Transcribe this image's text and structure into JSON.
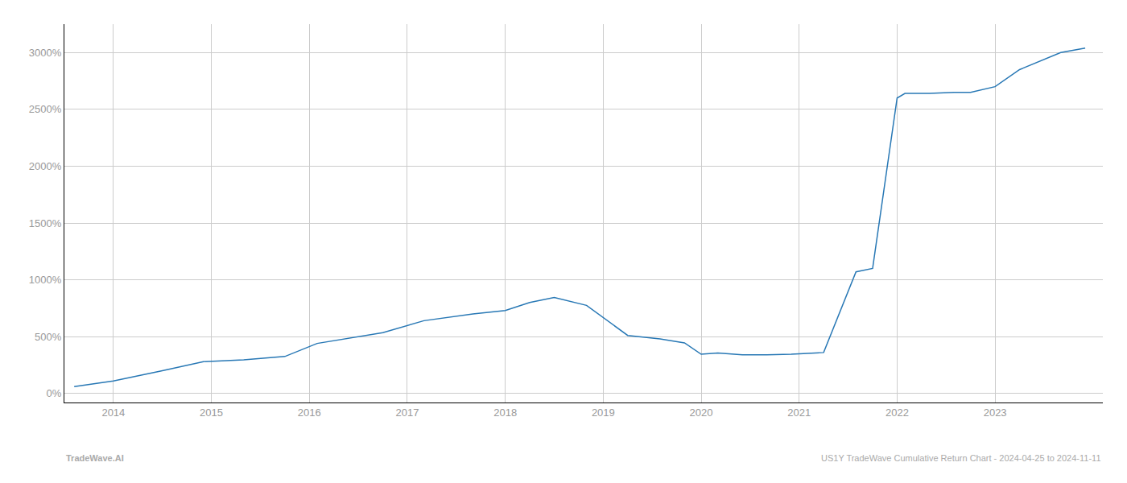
{
  "chart_data": {
    "type": "line",
    "x": [
      2013.6,
      2014.0,
      2014.5,
      2014.92,
      2015.33,
      2015.75,
      2016.08,
      2016.42,
      2016.75,
      2017.17,
      2017.67,
      2018.0,
      2018.25,
      2018.5,
      2018.83,
      2019.25,
      2019.58,
      2019.83,
      2020.0,
      2020.17,
      2020.42,
      2020.67,
      2020.92,
      2021.25,
      2021.58,
      2021.75,
      2022.0,
      2022.08,
      2022.33,
      2022.58,
      2022.75,
      2023.0,
      2023.25,
      2023.67,
      2023.92
    ],
    "values": [
      60,
      110,
      200,
      280,
      295,
      325,
      440,
      490,
      535,
      640,
      700,
      730,
      800,
      845,
      775,
      510,
      480,
      445,
      345,
      355,
      340,
      340,
      345,
      360,
      1070,
      1100,
      2600,
      2640,
      2640,
      2650,
      2650,
      2700,
      2850,
      3000,
      3040
    ],
    "color": "#2878b5",
    "xlim": [
      2013.5,
      2024.1
    ],
    "xticks": [
      2014,
      2015,
      2016,
      2017,
      2018,
      2019,
      2020,
      2021,
      2022,
      2023
    ],
    "ylim": [
      -80,
      3250
    ],
    "yticks": [
      {
        "value": 0,
        "label": "0%"
      },
      {
        "value": 500,
        "label": "500%"
      },
      {
        "value": 1000,
        "label": "1000%"
      },
      {
        "value": 1500,
        "label": "1500%"
      },
      {
        "value": 2000,
        "label": "2000%"
      },
      {
        "value": 2500,
        "label": "2500%"
      },
      {
        "value": 3000,
        "label": "3000%"
      }
    ],
    "grid": true,
    "annotations": [
      "TradeWave.AI",
      "US1Y TradeWave Cumulative Return Chart - 2024-04-25 to 2024-11-11"
    ]
  }
}
